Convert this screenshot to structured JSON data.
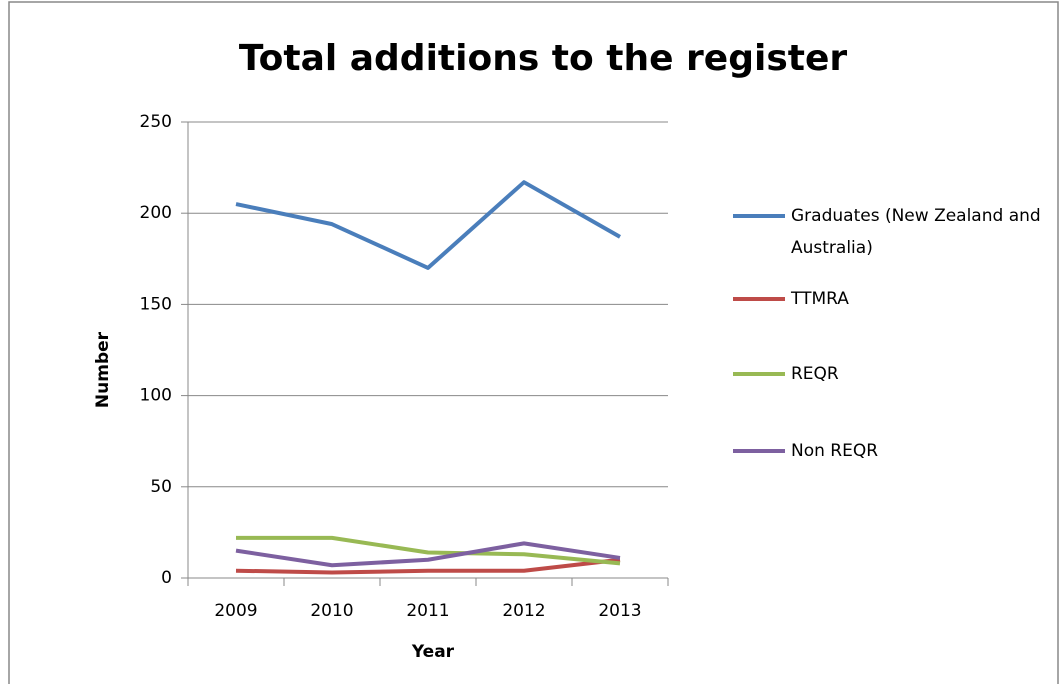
{
  "chart_data": {
    "type": "line",
    "title": "Total additions to the register",
    "x_label": "Year",
    "y_label": "Number",
    "categories": [
      "2009",
      "2010",
      "2011",
      "2012",
      "2013"
    ],
    "series": [
      {
        "name": "Graduates (New Zealand and Australia)",
        "color": "#4a7ebb",
        "values": [
          205,
          194,
          170,
          217,
          187
        ]
      },
      {
        "name": "TTMRA",
        "color": "#be4b48",
        "values": [
          4,
          3,
          4,
          4,
          10
        ]
      },
      {
        "name": "REQR",
        "color": "#98b954",
        "values": [
          22,
          22,
          14,
          13,
          8
        ]
      },
      {
        "name": "Non REQR",
        "color": "#7d60a0",
        "values": [
          15,
          7,
          10,
          19,
          11
        ]
      }
    ],
    "ylim": [
      0,
      250
    ],
    "yticks": [
      0,
      50,
      100,
      150,
      200,
      250
    ],
    "grid": true,
    "legend": "right"
  }
}
